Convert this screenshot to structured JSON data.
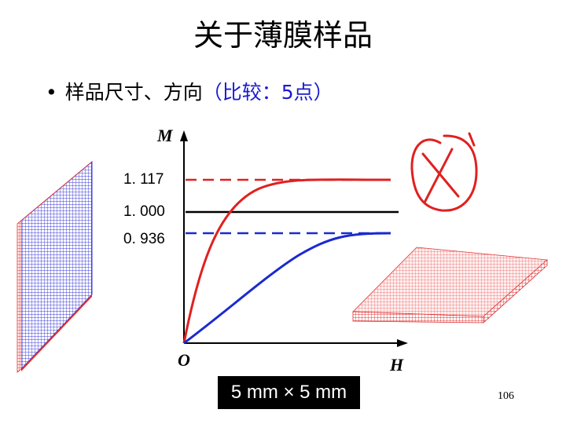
{
  "title": "关于薄膜样品",
  "bullet": {
    "prefix": "样品尺寸、方向",
    "paren": "（比较：5点）"
  },
  "plot": {
    "y_axis_label": "M",
    "x_axis_label": "H",
    "origin_label": "O",
    "levels": [
      {
        "label": "1. 117",
        "value": 1.117,
        "color": "#e02020",
        "style": "dashed"
      },
      {
        "label": "1. 000",
        "value": 1.0,
        "color": "#000000",
        "style": "solid"
      },
      {
        "label": "0. 936",
        "value": 0.936,
        "color": "#1a2ad0",
        "style": "dashed"
      }
    ]
  },
  "dimension_label": "5 mm × 5 mm",
  "page_number": "106",
  "colors": {
    "red": "#e02020",
    "blue": "#1a2ad0",
    "black": "#000000"
  }
}
